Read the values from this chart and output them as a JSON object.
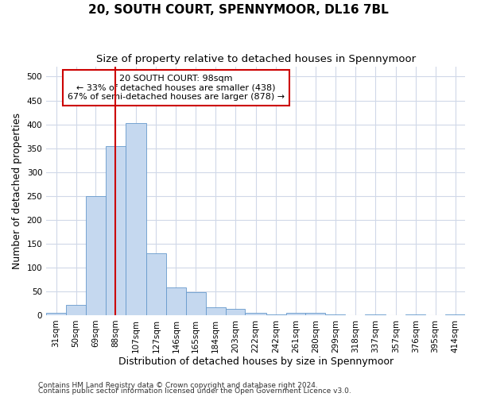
{
  "title": "20, SOUTH COURT, SPENNYMOOR, DL16 7BL",
  "subtitle": "Size of property relative to detached houses in Spennymoor",
  "xlabel": "Distribution of detached houses by size in Spennymoor",
  "ylabel": "Number of detached properties",
  "footnote1": "Contains HM Land Registry data © Crown copyright and database right 2024.",
  "footnote2": "Contains public sector information licensed under the Open Government Licence v3.0.",
  "annotation_line1": "20 SOUTH COURT: 98sqm",
  "annotation_line2": "← 33% of detached houses are smaller (438)",
  "annotation_line3": "67% of semi-detached houses are larger (878) →",
  "bar_color": "#c5d8ef",
  "bar_edge_color": "#6699cc",
  "vline_color": "#cc0000",
  "vline_x": 97,
  "categories": [
    "31sqm",
    "50sqm",
    "69sqm",
    "88sqm",
    "107sqm",
    "127sqm",
    "146sqm",
    "165sqm",
    "184sqm",
    "203sqm",
    "222sqm",
    "242sqm",
    "261sqm",
    "280sqm",
    "299sqm",
    "318sqm",
    "337sqm",
    "357sqm",
    "376sqm",
    "395sqm",
    "414sqm"
  ],
  "bin_edges": [
    31,
    50,
    69,
    88,
    107,
    127,
    146,
    165,
    184,
    203,
    222,
    242,
    261,
    280,
    299,
    318,
    337,
    357,
    376,
    395,
    414,
    433
  ],
  "values": [
    5,
    22,
    250,
    355,
    403,
    130,
    58,
    48,
    17,
    14,
    5,
    2,
    5,
    5,
    2,
    0,
    2,
    0,
    2,
    0,
    2
  ],
  "ylim": [
    0,
    520
  ],
  "yticks": [
    0,
    50,
    100,
    150,
    200,
    250,
    300,
    350,
    400,
    450,
    500
  ],
  "background_color": "#ffffff",
  "plot_background": "#ffffff",
  "grid_color": "#d0d8e8",
  "title_fontsize": 11,
  "subtitle_fontsize": 9.5,
  "axis_label_fontsize": 9,
  "tick_fontsize": 7.5,
  "footnote_fontsize": 6.5
}
